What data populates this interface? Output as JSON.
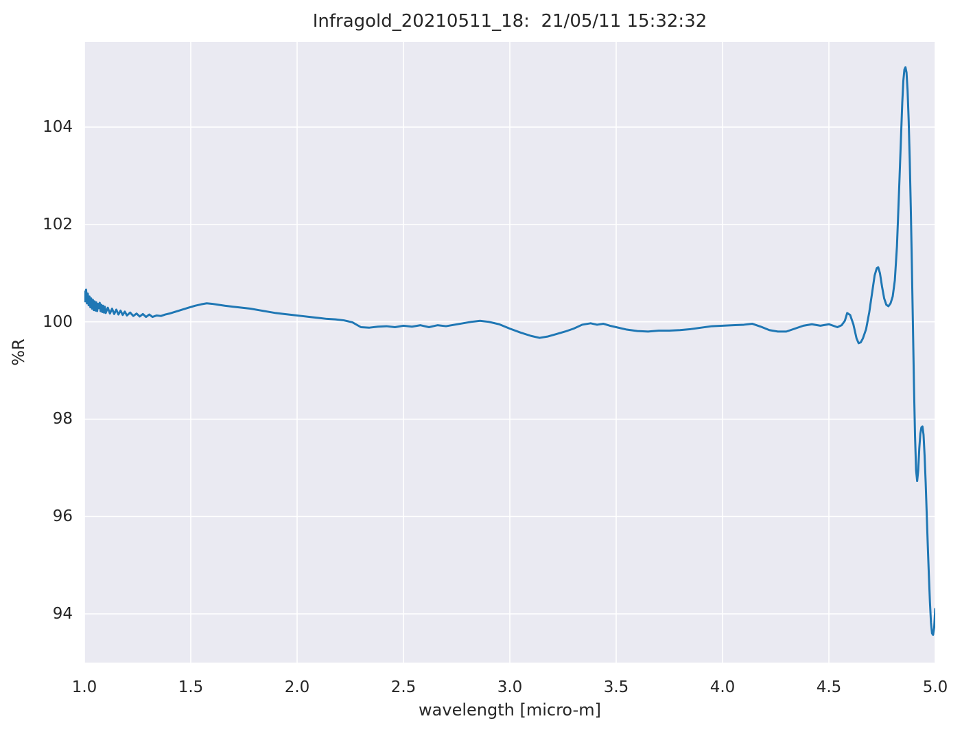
{
  "figure": {
    "background_color": "#ffffff",
    "text_color": "#262626"
  },
  "chart_data": {
    "type": "line",
    "title": "Infragold_20210511_18:  21/05/11 15:32:32",
    "xlabel": "wavelength [micro-m]",
    "ylabel": "%R",
    "xlim": [
      1.0,
      5.0
    ],
    "ylim": [
      93.0,
      105.75
    ],
    "xticks": [
      1.0,
      1.5,
      2.0,
      2.5,
      3.0,
      3.5,
      4.0,
      4.5,
      5.0
    ],
    "xtick_labels": [
      "1.0",
      "1.5",
      "2.0",
      "2.5",
      "3.0",
      "3.5",
      "4.0",
      "4.5",
      "5.0"
    ],
    "yticks": [
      94,
      96,
      98,
      100,
      102,
      104
    ],
    "ytick_labels": [
      "94",
      "96",
      "98",
      "100",
      "102",
      "104"
    ],
    "grid": true,
    "legend": false,
    "plot_background_color": "#eaeaf2",
    "grid_color": "#ffffff",
    "series": [
      {
        "name": "%R",
        "color": "#1f77b4",
        "line_width": 3,
        "points": [
          [
            1.0,
            100.62
          ],
          [
            1.004,
            100.42
          ],
          [
            1.008,
            100.66
          ],
          [
            1.012,
            100.38
          ],
          [
            1.016,
            100.58
          ],
          [
            1.02,
            100.34
          ],
          [
            1.024,
            100.52
          ],
          [
            1.028,
            100.3
          ],
          [
            1.032,
            100.48
          ],
          [
            1.036,
            100.27
          ],
          [
            1.04,
            100.45
          ],
          [
            1.044,
            100.24
          ],
          [
            1.048,
            100.42
          ],
          [
            1.052,
            100.23
          ],
          [
            1.056,
            100.4
          ],
          [
            1.06,
            100.22
          ],
          [
            1.064,
            100.37
          ],
          [
            1.068,
            100.28
          ],
          [
            1.072,
            100.39
          ],
          [
            1.076,
            100.22
          ],
          [
            1.08,
            100.35
          ],
          [
            1.084,
            100.2
          ],
          [
            1.088,
            100.33
          ],
          [
            1.092,
            100.19
          ],
          [
            1.096,
            100.31
          ],
          [
            1.1,
            100.18
          ],
          [
            1.11,
            100.29
          ],
          [
            1.12,
            100.17
          ],
          [
            1.13,
            100.27
          ],
          [
            1.14,
            100.16
          ],
          [
            1.15,
            100.25
          ],
          [
            1.16,
            100.15
          ],
          [
            1.17,
            100.23
          ],
          [
            1.18,
            100.14
          ],
          [
            1.19,
            100.21
          ],
          [
            1.2,
            100.13
          ],
          [
            1.215,
            100.19
          ],
          [
            1.23,
            100.12
          ],
          [
            1.245,
            100.17
          ],
          [
            1.26,
            100.11
          ],
          [
            1.275,
            100.16
          ],
          [
            1.29,
            100.1
          ],
          [
            1.305,
            100.15
          ],
          [
            1.32,
            100.1
          ],
          [
            1.34,
            100.13
          ],
          [
            1.36,
            100.12
          ],
          [
            1.38,
            100.15
          ],
          [
            1.4,
            100.17
          ],
          [
            1.43,
            100.21
          ],
          [
            1.46,
            100.25
          ],
          [
            1.49,
            100.29
          ],
          [
            1.52,
            100.33
          ],
          [
            1.55,
            100.36
          ],
          [
            1.575,
            100.38
          ],
          [
            1.6,
            100.37
          ],
          [
            1.63,
            100.35
          ],
          [
            1.66,
            100.33
          ],
          [
            1.7,
            100.31
          ],
          [
            1.74,
            100.29
          ],
          [
            1.78,
            100.27
          ],
          [
            1.82,
            100.24
          ],
          [
            1.86,
            100.21
          ],
          [
            1.9,
            100.18
          ],
          [
            1.94,
            100.16
          ],
          [
            1.98,
            100.14
          ],
          [
            2.02,
            100.12
          ],
          [
            2.06,
            100.1
          ],
          [
            2.1,
            100.08
          ],
          [
            2.14,
            100.06
          ],
          [
            2.18,
            100.05
          ],
          [
            2.22,
            100.03
          ],
          [
            2.26,
            99.99
          ],
          [
            2.3,
            99.89
          ],
          [
            2.34,
            99.88
          ],
          [
            2.38,
            99.9
          ],
          [
            2.42,
            99.91
          ],
          [
            2.46,
            99.89
          ],
          [
            2.5,
            99.92
          ],
          [
            2.54,
            99.9
          ],
          [
            2.58,
            99.93
          ],
          [
            2.62,
            99.89
          ],
          [
            2.66,
            99.93
          ],
          [
            2.7,
            99.91
          ],
          [
            2.74,
            99.94
          ],
          [
            2.78,
            99.97
          ],
          [
            2.82,
            100.0
          ],
          [
            2.86,
            100.02
          ],
          [
            2.9,
            100.0
          ],
          [
            2.95,
            99.95
          ],
          [
            3.0,
            99.86
          ],
          [
            3.05,
            99.78
          ],
          [
            3.1,
            99.71
          ],
          [
            3.14,
            99.67
          ],
          [
            3.18,
            99.7
          ],
          [
            3.22,
            99.75
          ],
          [
            3.26,
            99.8
          ],
          [
            3.3,
            99.86
          ],
          [
            3.34,
            99.94
          ],
          [
            3.38,
            99.97
          ],
          [
            3.41,
            99.94
          ],
          [
            3.44,
            99.96
          ],
          [
            3.47,
            99.92
          ],
          [
            3.5,
            99.89
          ],
          [
            3.55,
            99.84
          ],
          [
            3.6,
            99.81
          ],
          [
            3.65,
            99.8
          ],
          [
            3.7,
            99.82
          ],
          [
            3.75,
            99.82
          ],
          [
            3.8,
            99.83
          ],
          [
            3.85,
            99.85
          ],
          [
            3.9,
            99.88
          ],
          [
            3.95,
            99.91
          ],
          [
            4.0,
            99.92
          ],
          [
            4.05,
            99.93
          ],
          [
            4.1,
            99.94
          ],
          [
            4.14,
            99.96
          ],
          [
            4.18,
            99.9
          ],
          [
            4.22,
            99.83
          ],
          [
            4.26,
            99.8
          ],
          [
            4.3,
            99.8
          ],
          [
            4.34,
            99.86
          ],
          [
            4.38,
            99.92
          ],
          [
            4.42,
            99.95
          ],
          [
            4.46,
            99.92
          ],
          [
            4.5,
            99.95
          ],
          [
            4.54,
            99.89
          ],
          [
            4.56,
            99.93
          ],
          [
            4.575,
            100.02
          ],
          [
            4.586,
            100.18
          ],
          [
            4.6,
            100.14
          ],
          [
            4.615,
            99.95
          ],
          [
            4.63,
            99.66
          ],
          [
            4.64,
            99.56
          ],
          [
            4.65,
            99.58
          ],
          [
            4.66,
            99.66
          ],
          [
            4.675,
            99.85
          ],
          [
            4.69,
            100.2
          ],
          [
            4.705,
            100.65
          ],
          [
            4.715,
            100.95
          ],
          [
            4.725,
            101.1
          ],
          [
            4.732,
            101.12
          ],
          [
            4.74,
            101.0
          ],
          [
            4.75,
            100.72
          ],
          [
            4.76,
            100.48
          ],
          [
            4.77,
            100.35
          ],
          [
            4.78,
            100.32
          ],
          [
            4.79,
            100.38
          ],
          [
            4.8,
            100.52
          ],
          [
            4.81,
            100.85
          ],
          [
            4.82,
            101.55
          ],
          [
            4.83,
            102.7
          ],
          [
            4.84,
            103.9
          ],
          [
            4.845,
            104.5
          ],
          [
            4.85,
            104.95
          ],
          [
            4.855,
            105.18
          ],
          [
            4.86,
            105.23
          ],
          [
            4.865,
            105.12
          ],
          [
            4.87,
            104.75
          ],
          [
            4.875,
            104.15
          ],
          [
            4.88,
            103.35
          ],
          [
            4.885,
            102.35
          ],
          [
            4.89,
            101.2
          ],
          [
            4.895,
            99.95
          ],
          [
            4.9,
            98.7
          ],
          [
            4.905,
            97.65
          ],
          [
            4.91,
            96.95
          ],
          [
            4.915,
            96.73
          ],
          [
            4.92,
            96.95
          ],
          [
            4.925,
            97.4
          ],
          [
            4.93,
            97.7
          ],
          [
            4.935,
            97.83
          ],
          [
            4.94,
            97.85
          ],
          [
            4.945,
            97.68
          ],
          [
            4.95,
            97.25
          ],
          [
            4.955,
            96.7
          ],
          [
            4.96,
            96.05
          ],
          [
            4.965,
            95.4
          ],
          [
            4.97,
            94.8
          ],
          [
            4.975,
            94.25
          ],
          [
            4.98,
            93.82
          ],
          [
            4.985,
            93.6
          ],
          [
            4.99,
            93.57
          ],
          [
            4.995,
            93.72
          ],
          [
            5.0,
            94.1
          ]
        ]
      }
    ]
  }
}
